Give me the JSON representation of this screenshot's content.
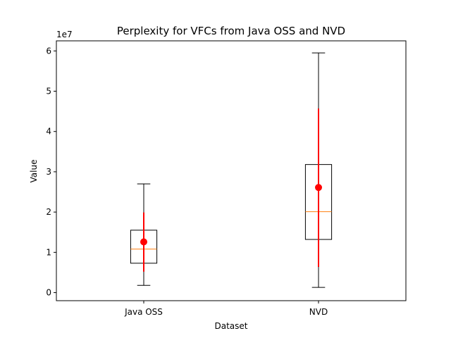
{
  "chart_data": {
    "type": "box",
    "title": "Perplexity for VFCs from Java OSS and NVD",
    "xlabel": "Dataset",
    "ylabel": "Value",
    "y_offset_label": "1e7",
    "y_scale_factor": 10000000,
    "ylim": [
      -2000000,
      62500000
    ],
    "yticks": [
      0,
      10000000,
      20000000,
      30000000,
      40000000,
      50000000,
      60000000
    ],
    "ytick_labels": [
      "0",
      "1",
      "2",
      "3",
      "4",
      "5",
      "6"
    ],
    "categories": [
      "Java OSS",
      "NVD"
    ],
    "boxes": [
      {
        "name": "Java OSS",
        "whislo": 1800000,
        "q1": 7300000,
        "median": 10800000,
        "q3": 15500000,
        "whishi": 27000000,
        "mean": 12600000,
        "std_low": 5200000,
        "std_high": 19900000
      },
      {
        "name": "NVD",
        "whislo": 1300000,
        "q1": 13200000,
        "median": 20100000,
        "q3": 31800000,
        "whishi": 59500000,
        "mean": 26100000,
        "std_low": 6400000,
        "std_high": 45700000
      }
    ],
    "colors": {
      "box": "#000000",
      "median": "#ff7f0e",
      "mean": "#ff0000",
      "error_bar": "#ff0000"
    },
    "grid": false,
    "legend": "none"
  }
}
